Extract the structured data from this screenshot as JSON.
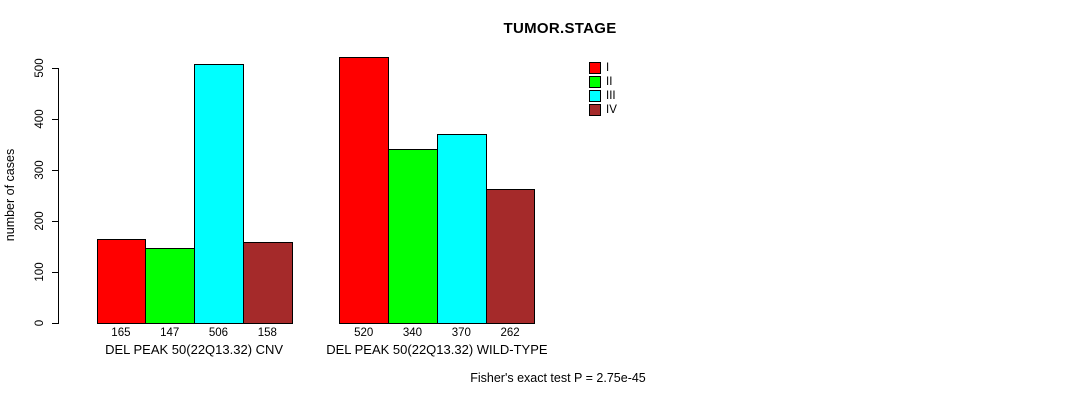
{
  "title": "TUMOR.STAGE",
  "footnote": "Fisher's exact test P = 2.75e-45",
  "chart_data": {
    "type": "bar",
    "title": "TUMOR.STAGE",
    "xlabel": "",
    "ylabel": "number of cases",
    "ylim": [
      0,
      500
    ],
    "yticks": [
      0,
      100,
      200,
      300,
      400,
      500
    ],
    "grid": false,
    "legend_position": "top-right",
    "series": [
      {
        "name": "I",
        "color": "#ff0000",
        "values": [
          165,
          520
        ]
      },
      {
        "name": "II",
        "color": "#00ff00",
        "values": [
          147,
          340
        ]
      },
      {
        "name": "III",
        "color": "#00ffff",
        "values": [
          506,
          370
        ]
      },
      {
        "name": "IV",
        "color": "#a52a2a",
        "values": [
          158,
          262
        ]
      }
    ],
    "categories": [
      "DEL PEAK 50(22Q13.32) CNV",
      "DEL PEAK 50(22Q13.32) WILD-TYPE"
    ],
    "bar_value_labels": [
      [
        165,
        147,
        506,
        158
      ],
      [
        520,
        340,
        370,
        262
      ]
    ],
    "annotation": "Fisher's exact test P = 2.75e-45"
  }
}
